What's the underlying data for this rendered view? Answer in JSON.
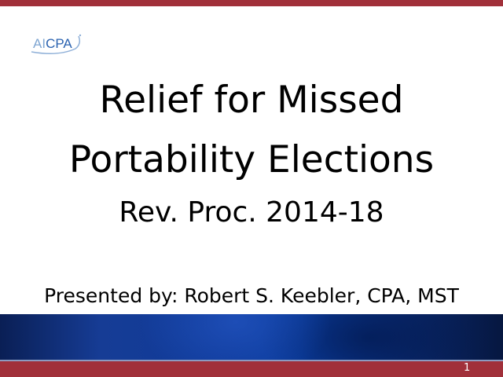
{
  "logo": {
    "text_ai": "AI",
    "text_cpa": "CPA",
    "brand": "AICPA"
  },
  "slide": {
    "title_line1": "Relief for Missed",
    "title_line2": "Portability Elections",
    "subtitle": "Rev. Proc. 2014-18",
    "presenter": "Presented by: Robert S. Keebler, CPA, MST",
    "page_number": "1"
  },
  "colors": {
    "accent_red": "#a1303a",
    "band_blue": "#0e3a9a",
    "logo_blue": "#2a62b0"
  }
}
